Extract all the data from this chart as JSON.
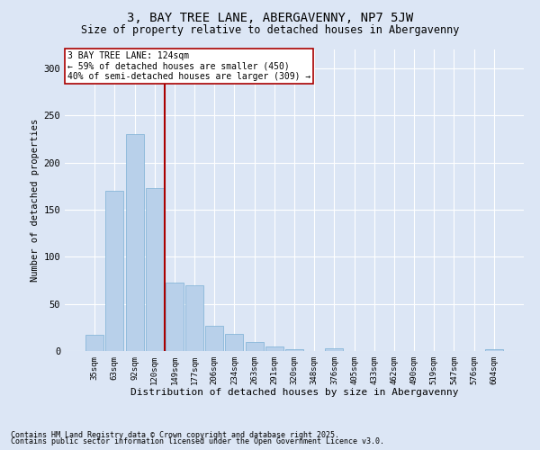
{
  "title1": "3, BAY TREE LANE, ABERGAVENNY, NP7 5JW",
  "title2": "Size of property relative to detached houses in Abergavenny",
  "xlabel": "Distribution of detached houses by size in Abergavenny",
  "ylabel": "Number of detached properties",
  "categories": [
    "35sqm",
    "63sqm",
    "92sqm",
    "120sqm",
    "149sqm",
    "177sqm",
    "206sqm",
    "234sqm",
    "263sqm",
    "291sqm",
    "320sqm",
    "348sqm",
    "376sqm",
    "405sqm",
    "433sqm",
    "462sqm",
    "490sqm",
    "519sqm",
    "547sqm",
    "576sqm",
    "604sqm"
  ],
  "values": [
    17,
    170,
    230,
    173,
    73,
    70,
    27,
    18,
    10,
    5,
    2,
    0,
    3,
    0,
    0,
    0,
    0,
    0,
    0,
    0,
    2
  ],
  "bar_color": "#b8d0ea",
  "bar_edge_color": "#7aafd4",
  "bg_color": "#dce6f5",
  "vline_x_idx": 3,
  "vline_color": "#aa0000",
  "annotation_text": "3 BAY TREE LANE: 124sqm\n← 59% of detached houses are smaller (450)\n40% of semi-detached houses are larger (309) →",
  "annotation_box_color": "#ffffff",
  "annotation_box_edge": "#aa0000",
  "footer1": "Contains HM Land Registry data © Crown copyright and database right 2025.",
  "footer2": "Contains public sector information licensed under the Open Government Licence v3.0.",
  "ylim": [
    0,
    320
  ],
  "yticks": [
    0,
    50,
    100,
    150,
    200,
    250,
    300
  ]
}
